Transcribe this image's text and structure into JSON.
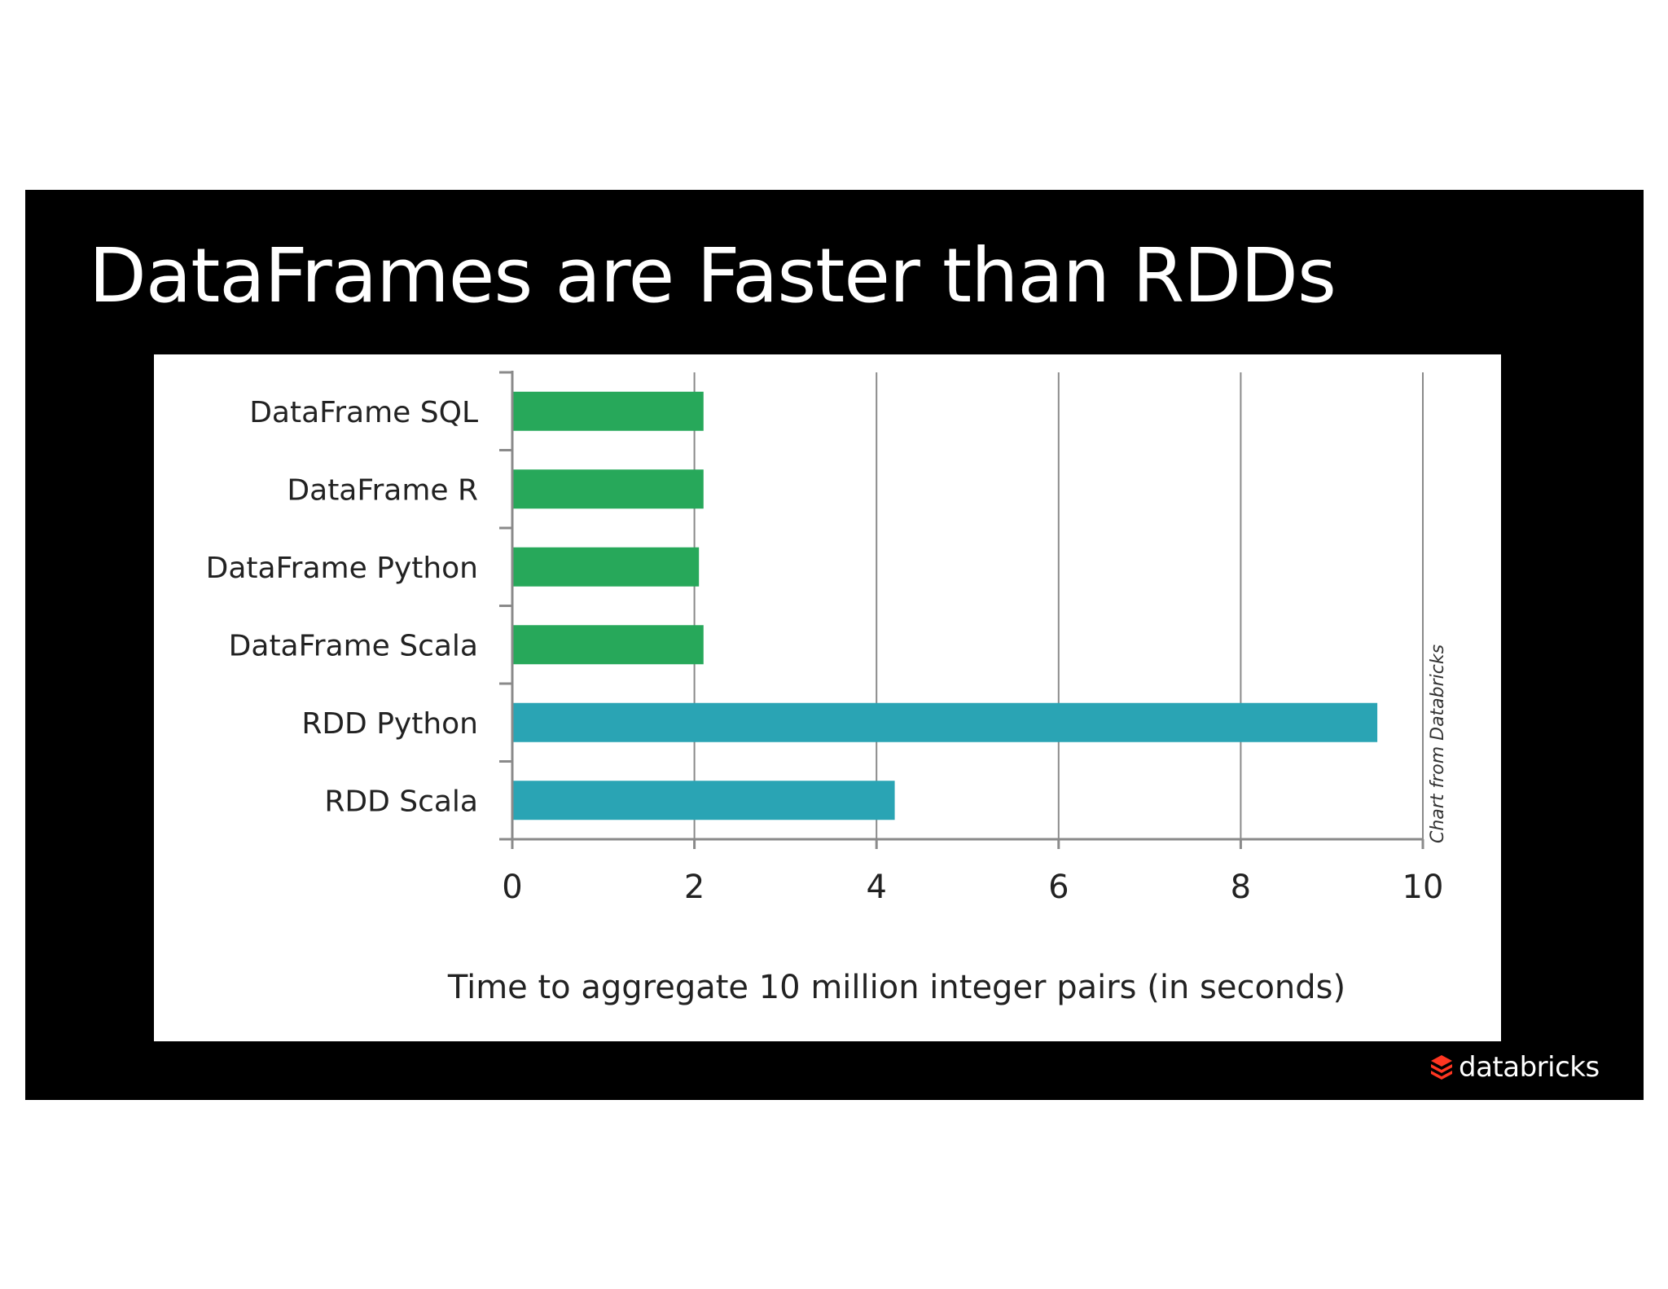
{
  "slide": {
    "title": "DataFrames are Faster than RDDs",
    "credit": "Chart from Databricks",
    "logo_text": "databricks",
    "logo_icon": "databricks-stack-icon"
  },
  "chart_data": {
    "type": "bar",
    "orientation": "horizontal",
    "categories": [
      "DataFrame SQL",
      "DataFrame R",
      "DataFrame Python",
      "DataFrame Scala",
      "RDD Python",
      "RDD Scala"
    ],
    "values": [
      2.1,
      2.1,
      2.05,
      2.1,
      9.5,
      4.2
    ],
    "bar_colors": [
      "#27a85a",
      "#27a85a",
      "#27a85a",
      "#27a85a",
      "#2aa4b4",
      "#2aa4b4"
    ],
    "xlabel": "Time to aggregate 10 million integer pairs (in seconds)",
    "ylabel": "",
    "title": "",
    "xlim": [
      0,
      10
    ],
    "xticks": [
      0,
      2,
      4,
      6,
      8,
      10
    ],
    "grid": "vertical"
  }
}
